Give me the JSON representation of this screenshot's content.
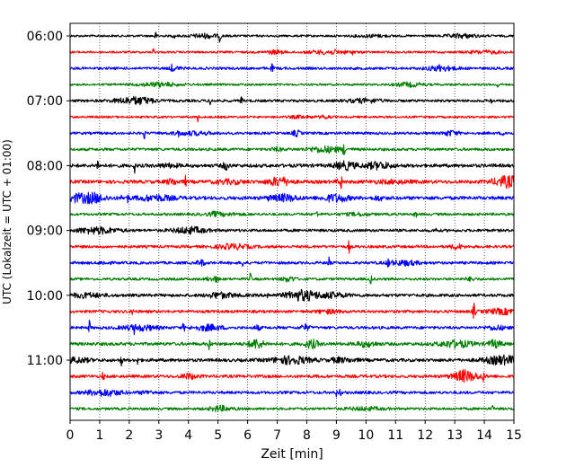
{
  "chart_data": {
    "type": "line",
    "title": "",
    "xlabel": "Zeit  [min]",
    "ylabel": "UTC (Lokalzeit = UTC + 01:00)",
    "xlim": [
      0,
      15
    ],
    "x_ticks": [
      "0",
      "1",
      "2",
      "3",
      "4",
      "5",
      "6",
      "7",
      "8",
      "9",
      "10",
      "11",
      "12",
      "13",
      "14",
      "15"
    ],
    "y_ticks": [
      "06:00",
      "07:00",
      "08:00",
      "09:00",
      "10:00",
      "11:00"
    ],
    "grid": "vertical dotted",
    "trace_interval_min": 15,
    "trace_colors": [
      "#000000",
      "#ff0000",
      "#0000ff",
      "#008000"
    ],
    "series": [
      {
        "start": "06:00",
        "color": "#000000",
        "level": 0.3
      },
      {
        "start": "06:15",
        "color": "#ff0000",
        "level": 0.3
      },
      {
        "start": "06:30",
        "color": "#0000ff",
        "level": 0.5
      },
      {
        "start": "06:45",
        "color": "#008000",
        "level": 0.3
      },
      {
        "start": "07:00",
        "color": "#000000",
        "level": 0.5
      },
      {
        "start": "07:15",
        "color": "#ff0000",
        "level": 0.3
      },
      {
        "start": "07:30",
        "color": "#0000ff",
        "level": 0.5
      },
      {
        "start": "07:45",
        "color": "#008000",
        "level": 0.6
      },
      {
        "start": "08:00",
        "color": "#000000",
        "level": 0.9
      },
      {
        "start": "08:15",
        "color": "#ff0000",
        "level": 0.9
      },
      {
        "start": "08:30",
        "color": "#0000ff",
        "level": 0.9
      },
      {
        "start": "08:45",
        "color": "#008000",
        "level": 0.5
      },
      {
        "start": "09:00",
        "color": "#000000",
        "level": 0.6
      },
      {
        "start": "09:15",
        "color": "#ff0000",
        "level": 0.6
      },
      {
        "start": "09:30",
        "color": "#0000ff",
        "level": 0.6
      },
      {
        "start": "09:45",
        "color": "#008000",
        "level": 0.5
      },
      {
        "start": "10:00",
        "color": "#000000",
        "level": 0.7
      },
      {
        "start": "10:15",
        "color": "#ff0000",
        "level": 0.6
      },
      {
        "start": "10:30",
        "color": "#0000ff",
        "level": 0.6
      },
      {
        "start": "10:45",
        "color": "#008000",
        "level": 0.8
      },
      {
        "start": "11:00",
        "color": "#000000",
        "level": 0.8
      },
      {
        "start": "11:15",
        "color": "#ff0000",
        "level": 0.7
      },
      {
        "start": "11:30",
        "color": "#0000ff",
        "level": 0.6
      },
      {
        "start": "11:45",
        "color": "#008000",
        "level": 0.5
      }
    ]
  }
}
